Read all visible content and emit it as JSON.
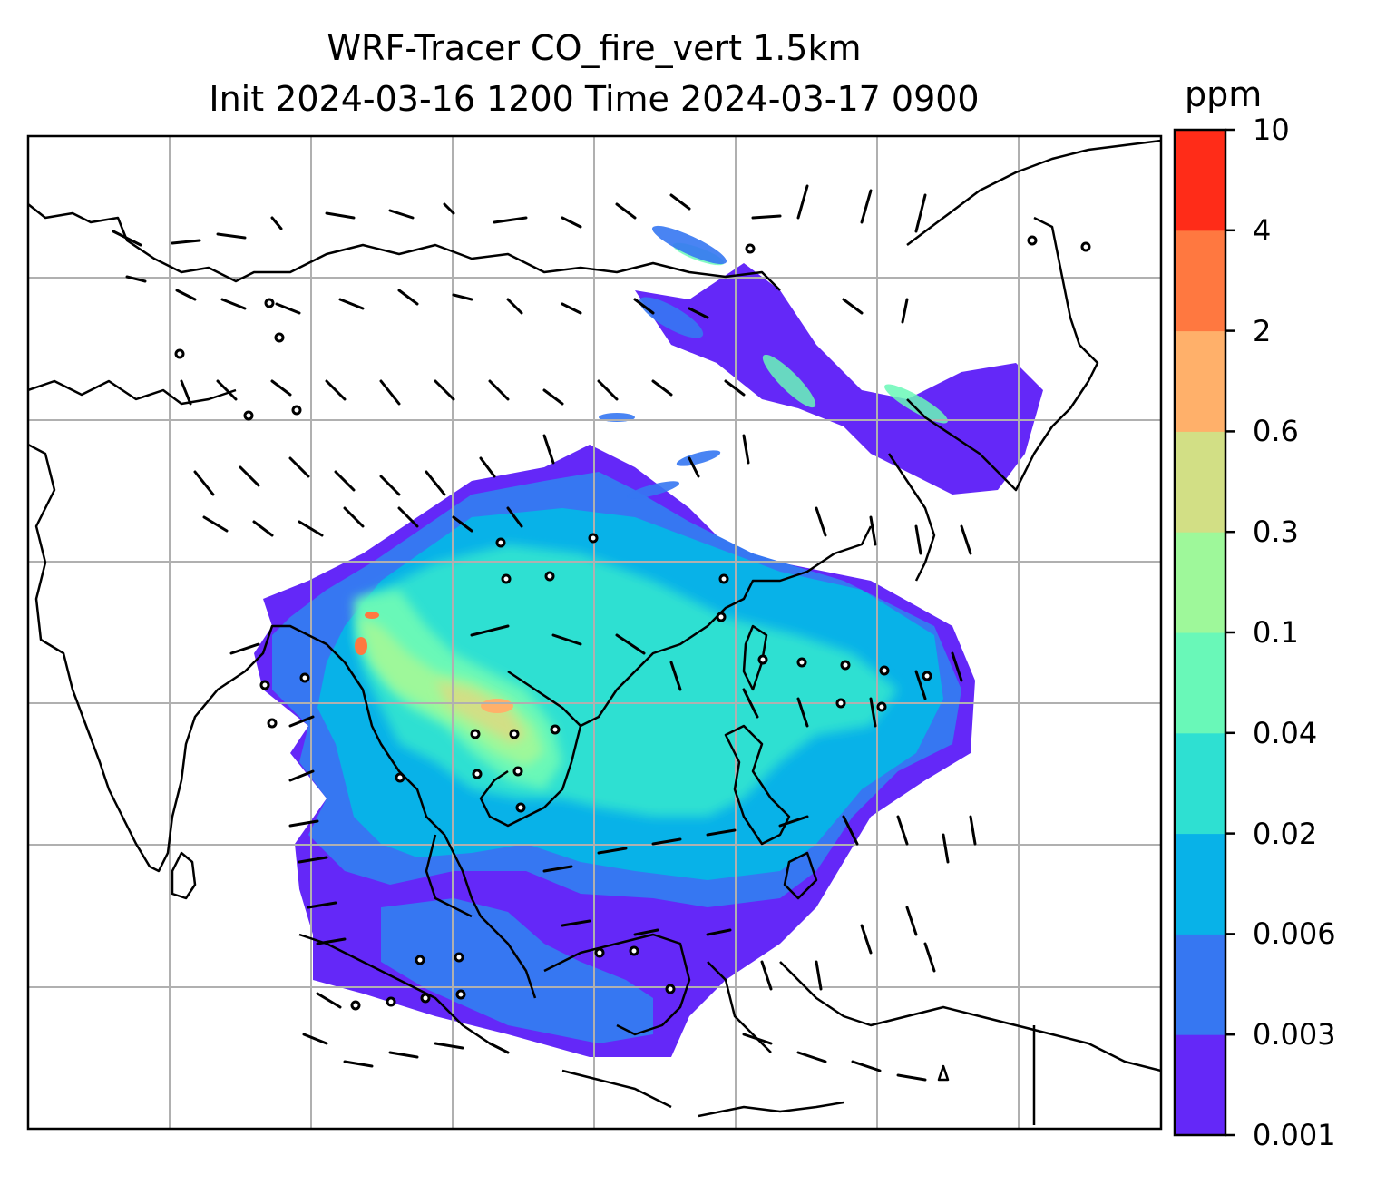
{
  "title": {
    "line1": "WRF-Tracer CO_fire_vert 1.5km",
    "line2": "Init 2024-03-16 1200 Time 2024-03-17 0900"
  },
  "colorbar": {
    "unit": "ppm",
    "levels": [
      "0.001",
      "0.003",
      "0.006",
      "0.02",
      "0.04",
      "0.1",
      "0.3",
      "0.6",
      "2",
      "4",
      "10"
    ],
    "colors": [
      "#6428f8",
      "#3677f2",
      "#08b2e8",
      "#2ee0d2",
      "#69f8b8",
      "#9ef89a",
      "#d2df85",
      "#ffb06a",
      "#ff7840",
      "#ff2c18"
    ]
  },
  "map": {
    "gridlines": true,
    "region": "Southeast / East Asia",
    "fields": [
      "CO fire tracer concentration (ppm)",
      "wind barbs",
      "station markers"
    ]
  }
}
